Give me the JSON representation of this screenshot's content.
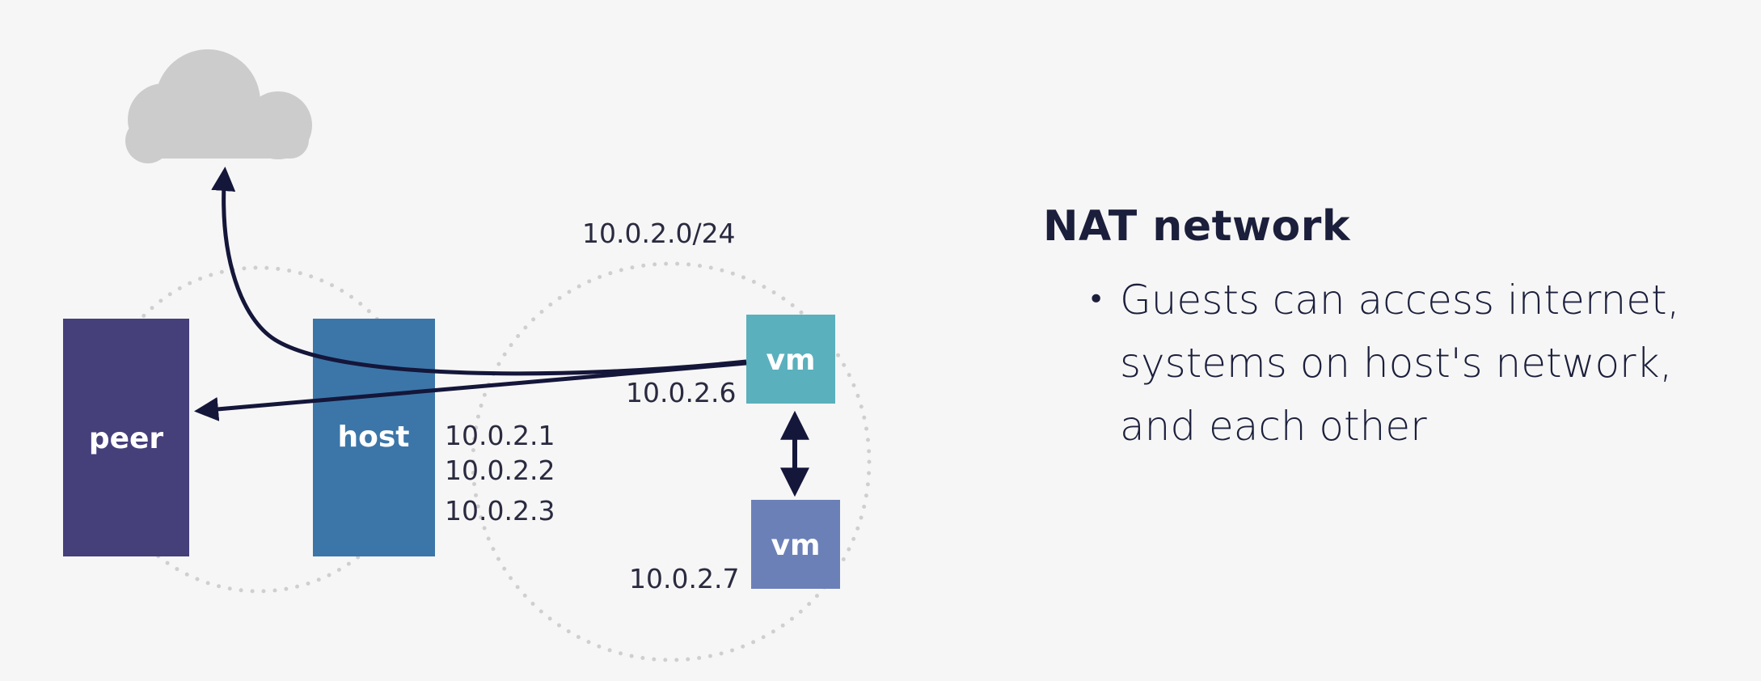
{
  "diagram": {
    "subnet_label": "10.0.2.0/24",
    "nodes": {
      "peer": {
        "label": "peer",
        "color": "#453f7a"
      },
      "host": {
        "label": "host",
        "color": "#3c76a8"
      },
      "vm1": {
        "label": "vm",
        "ip": "10.0.2.6",
        "color": "#5bb0bd"
      },
      "vm2": {
        "label": "vm",
        "ip": "10.0.2.7",
        "color": "#6c80b8"
      }
    },
    "host_ips": [
      "10.0.2.1",
      "10.0.2.2",
      "10.0.2.3"
    ],
    "icons": {
      "cloud": "cloud-icon"
    },
    "colors": {
      "arrow": "#14163a",
      "dotted_circle": "#cfcfcf",
      "cloud": "#cccccc"
    }
  },
  "panel": {
    "title": "NAT network",
    "bullets": [
      "Guests can access internet, systems on host's network, and each other"
    ]
  }
}
